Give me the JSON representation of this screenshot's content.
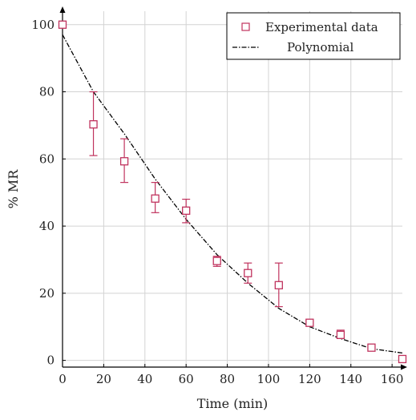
{
  "chart_data": {
    "type": "scatter",
    "title": "",
    "xlabel": "Time (min)",
    "ylabel": "% MR",
    "xlim": [
      0,
      165
    ],
    "ylim": [
      -2,
      104
    ],
    "x_ticks": [
      0,
      20,
      40,
      60,
      80,
      100,
      120,
      140,
      160
    ],
    "y_ticks": [
      0,
      20,
      40,
      60,
      80,
      100
    ],
    "grid": true,
    "legend_position": "top-right",
    "colors": {
      "experimental": "#c0335e",
      "polynomial": "#000000"
    },
    "series": [
      {
        "name": "Experimental data",
        "kind": "markers-with-error-bars",
        "marker": "open-square",
        "points": [
          {
            "x": 0,
            "y": 100,
            "err_low": 100,
            "err_high": 100
          },
          {
            "x": 15,
            "y": 70.3,
            "err_low": 61,
            "err_high": 80
          },
          {
            "x": 30,
            "y": 59.3,
            "err_low": 53,
            "err_high": 66
          },
          {
            "x": 45,
            "y": 48.2,
            "err_low": 44,
            "err_high": 53
          },
          {
            "x": 60,
            "y": 44.6,
            "err_low": 41,
            "err_high": 48
          },
          {
            "x": 75,
            "y": 29.6,
            "err_low": 28,
            "err_high": 31
          },
          {
            "x": 90,
            "y": 26,
            "err_low": 23,
            "err_high": 29
          },
          {
            "x": 105,
            "y": 22.4,
            "err_low": 16,
            "err_high": 29
          },
          {
            "x": 120,
            "y": 11.2,
            "err_low": 10.5,
            "err_high": 12
          },
          {
            "x": 135,
            "y": 7.6,
            "err_low": 6.5,
            "err_high": 9
          },
          {
            "x": 150,
            "y": 3.8,
            "err_low": 3.5,
            "err_high": 4.2
          },
          {
            "x": 165,
            "y": 0.4,
            "err_low": 0.4,
            "err_high": 0.4
          }
        ]
      },
      {
        "name": "Polynomial",
        "kind": "line",
        "line_style": "dash-dot",
        "points": [
          {
            "x": 0,
            "y": 97
          },
          {
            "x": 15,
            "y": 80
          },
          {
            "x": 30,
            "y": 67.5
          },
          {
            "x": 45,
            "y": 54
          },
          {
            "x": 60,
            "y": 42
          },
          {
            "x": 75,
            "y": 31.5
          },
          {
            "x": 90,
            "y": 23
          },
          {
            "x": 105,
            "y": 15.5
          },
          {
            "x": 120,
            "y": 10
          },
          {
            "x": 135,
            "y": 6.5
          },
          {
            "x": 150,
            "y": 3.5
          },
          {
            "x": 165,
            "y": 2.2
          }
        ]
      }
    ]
  }
}
